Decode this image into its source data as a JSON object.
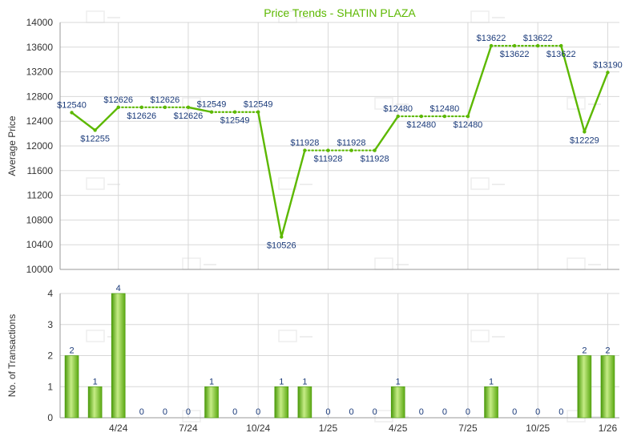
{
  "chart_data": [
    {
      "type": "line",
      "title": "Price Trends - SHATIN PLAZA",
      "ylabel": "Average Price",
      "ylim": [
        10000,
        14000
      ],
      "y_ticks": [
        10000,
        10400,
        10800,
        11200,
        11600,
        12000,
        12400,
        12800,
        13200,
        13600,
        14000
      ],
      "x_tick_labels": [
        "4/24",
        "7/24",
        "10/24",
        "1/25",
        "4/25",
        "7/25",
        "10/25",
        "1/26"
      ],
      "point_label_prefix": "$",
      "series": [
        {
          "values": [
            12540,
            12255,
            12626,
            12626,
            12626,
            12626,
            12549,
            12549,
            12549,
            10526,
            11928,
            11928,
            11928,
            11928,
            12480,
            12480,
            12480,
            12480,
            13622,
            13622,
            13622,
            13622,
            12229,
            13190
          ]
        }
      ],
      "grid": true,
      "color": "#5cb800"
    },
    {
      "type": "bar",
      "ylabel": "No. of Transactions",
      "ylim": [
        0,
        4
      ],
      "y_ticks": [
        0,
        1,
        2,
        3,
        4
      ],
      "x_tick_labels": [
        "4/24",
        "7/24",
        "10/24",
        "1/25",
        "4/25",
        "7/25",
        "10/25",
        "1/26"
      ],
      "values": [
        2,
        1,
        4,
        0,
        0,
        0,
        1,
        0,
        0,
        1,
        1,
        0,
        0,
        0,
        1,
        0,
        0,
        0,
        1,
        0,
        0,
        0,
        2,
        2
      ],
      "grid": true,
      "color": "#6cc01c"
    }
  ]
}
